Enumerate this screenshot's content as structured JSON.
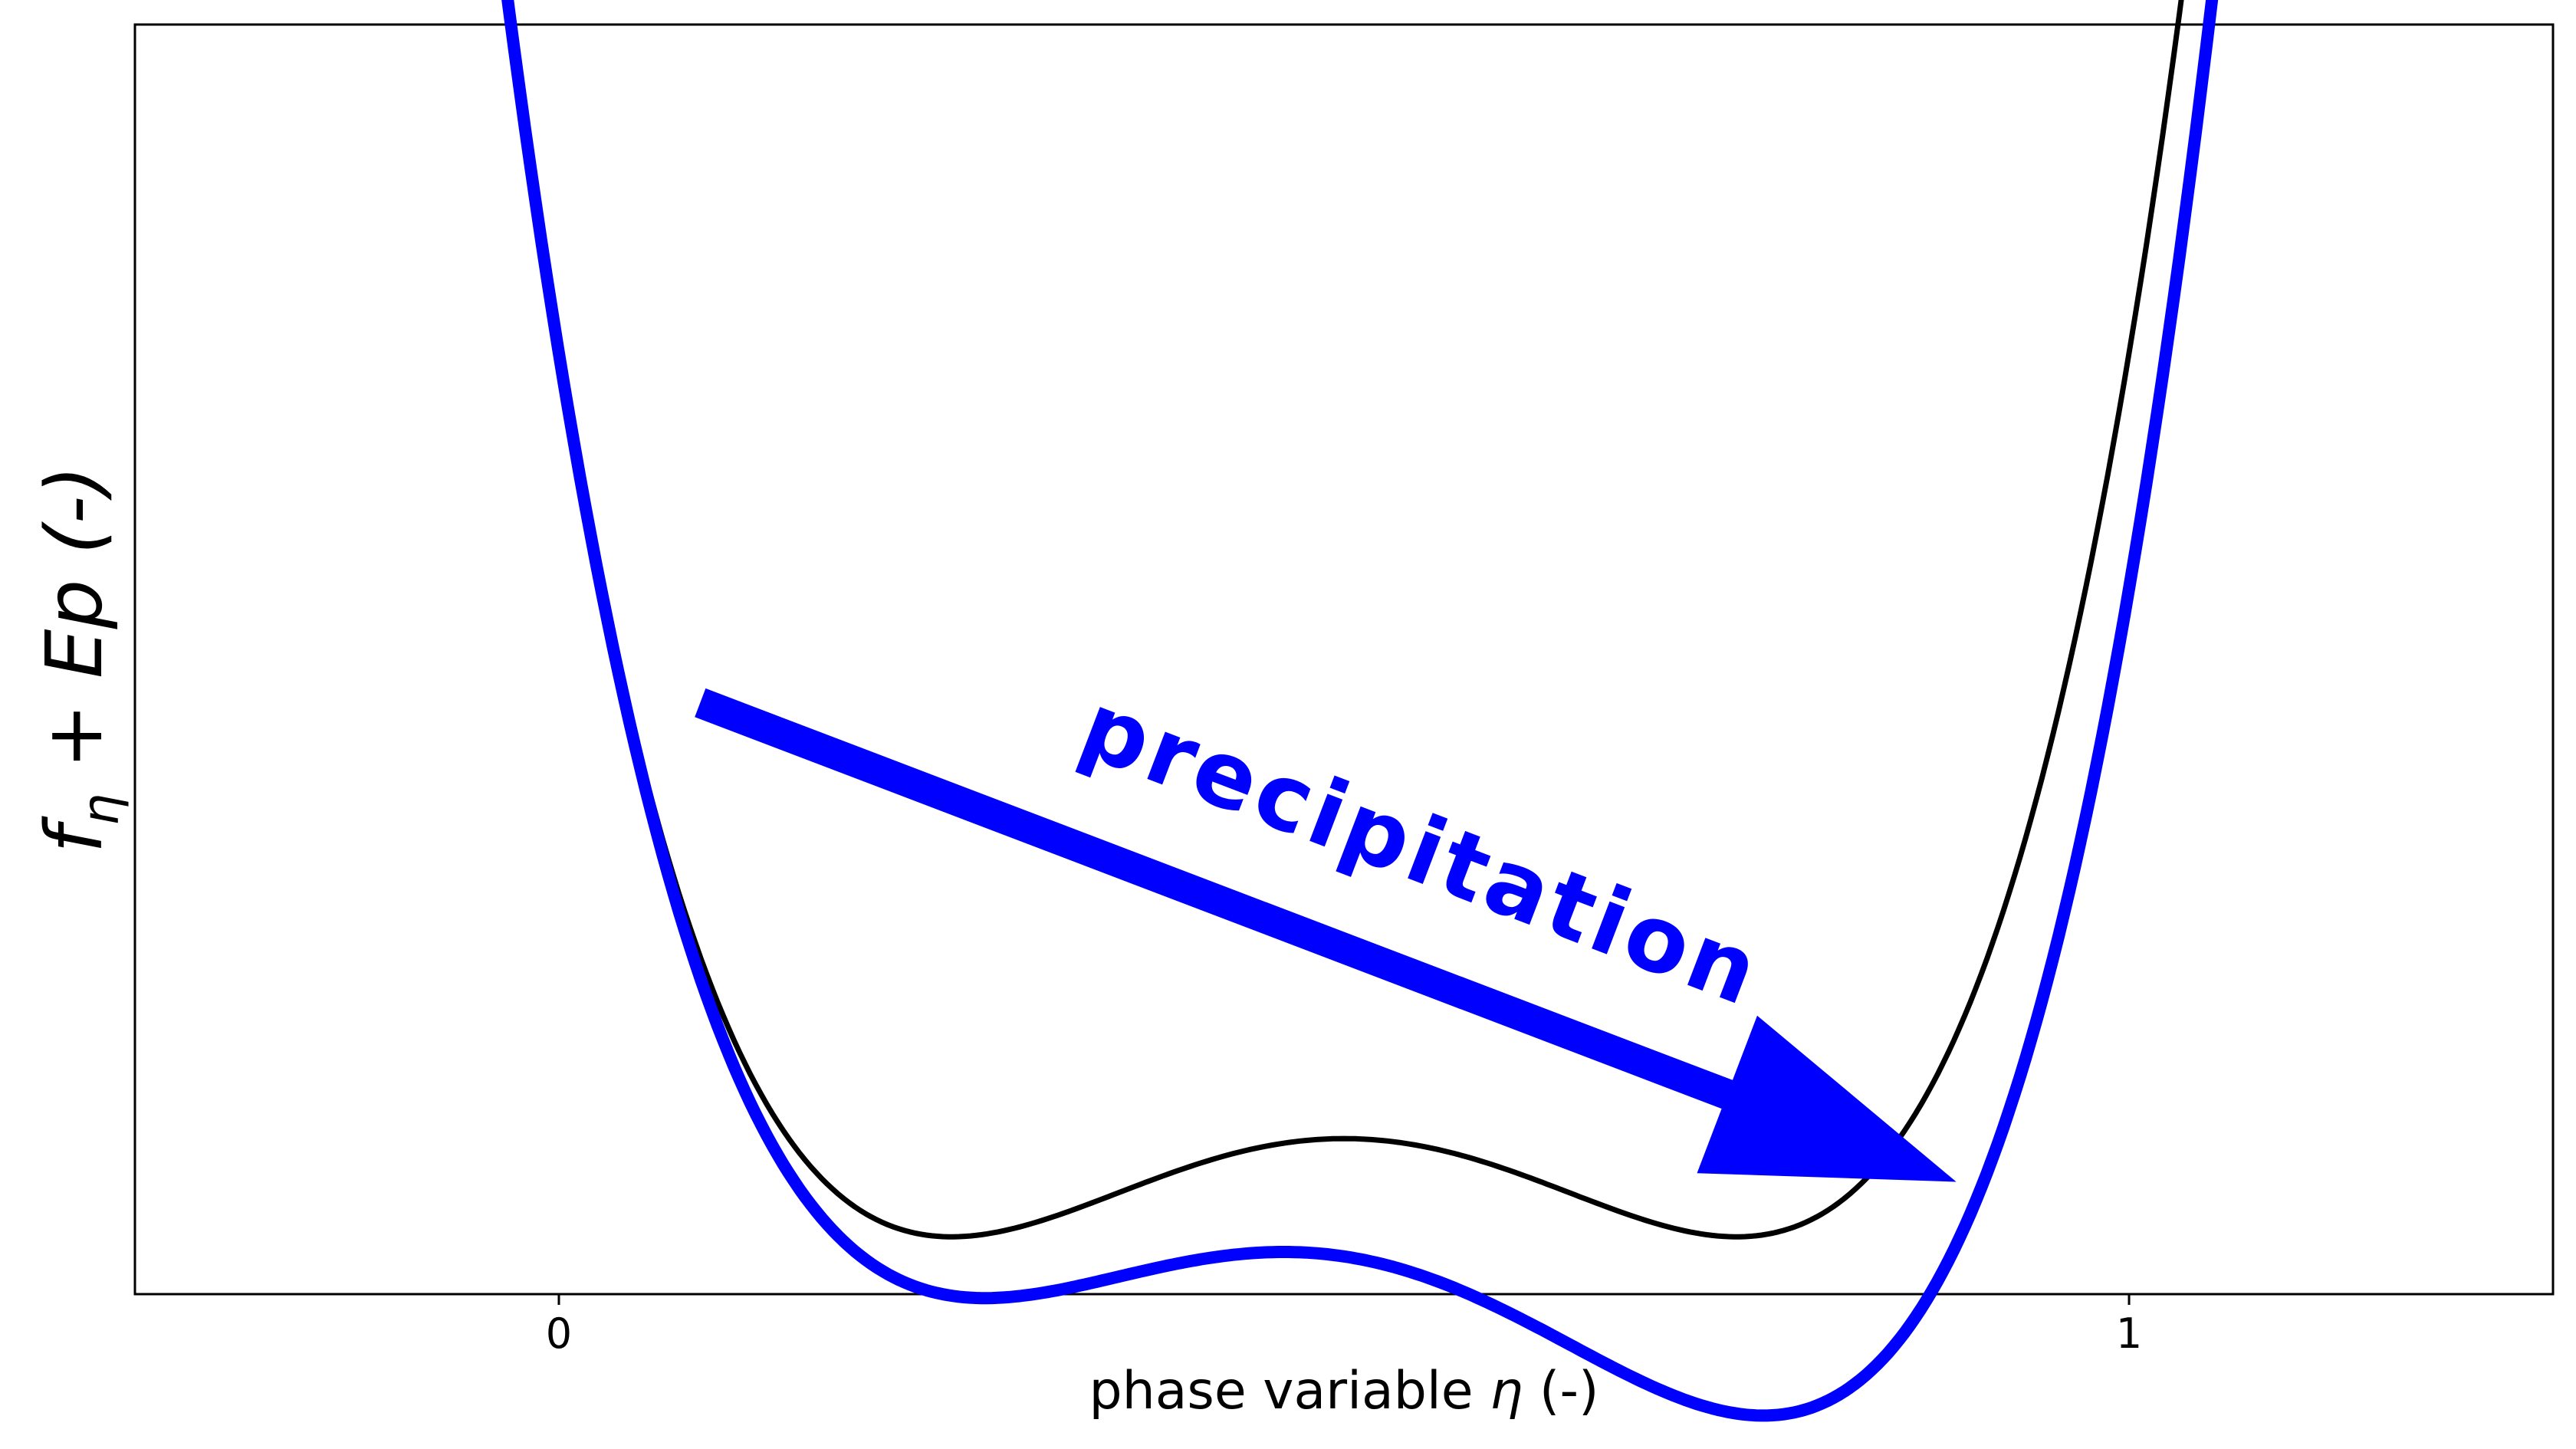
{
  "chart_data": {
    "type": "line",
    "xlabel_prefix": "phase variable ",
    "xlabel_symbol": "η",
    "xlabel_suffix": " (-)",
    "ylabel_f": "f",
    "ylabel_sub": "η",
    "ylabel_rest": " + Ep (-)",
    "xticks": [
      0,
      1
    ],
    "xticklabels": [
      "0",
      "1"
    ],
    "xlim": [
      -0.27,
      1.27
    ],
    "ylim": [
      -0.0365,
      0.7717
    ],
    "yticks_shown": false,
    "grid": false,
    "series": [
      {
        "color": "#000000",
        "x_range": [
          -0.2,
          1.2
        ],
        "x_offset": 0.5,
        "quartic": 16.0,
        "quadratic": -2.0,
        "const": 0.0625,
        "linear": 0.0
      },
      {
        "color": "#0000ff",
        "x_range": [
          -0.2,
          1.2
        ],
        "x_offset": 0.5,
        "quartic": 16.0,
        "quadratic": -2.0,
        "const": 0.0625,
        "linear": -0.15,
        "extra": [
          0.15,
          1.05,
          1.0
        ]
      }
    ],
    "annotation": {
      "text": "precipitation",
      "color": "#0000ff",
      "arrow_from": [
        0.09,
        0.34
      ],
      "arrow_to": [
        0.89,
        0.035
      ]
    }
  }
}
